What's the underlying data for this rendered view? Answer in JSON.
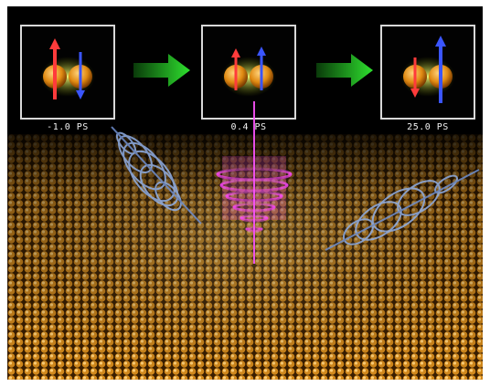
{
  "image": {
    "description_free": true,
    "colors": {
      "background": "#000000",
      "surface_gold": "#c9861a",
      "spin_up_red": "#e83030",
      "spin_down_blue": "#2a4cff",
      "pulse_magenta": "#e040e0",
      "spiral_blue": "#7f9fd6",
      "arrow_green": "#22cc22"
    },
    "panels": [
      {
        "caption": "-1.0 PS"
      },
      {
        "caption": "0.4 PS"
      },
      {
        "caption": "25.0 PS"
      }
    ]
  }
}
